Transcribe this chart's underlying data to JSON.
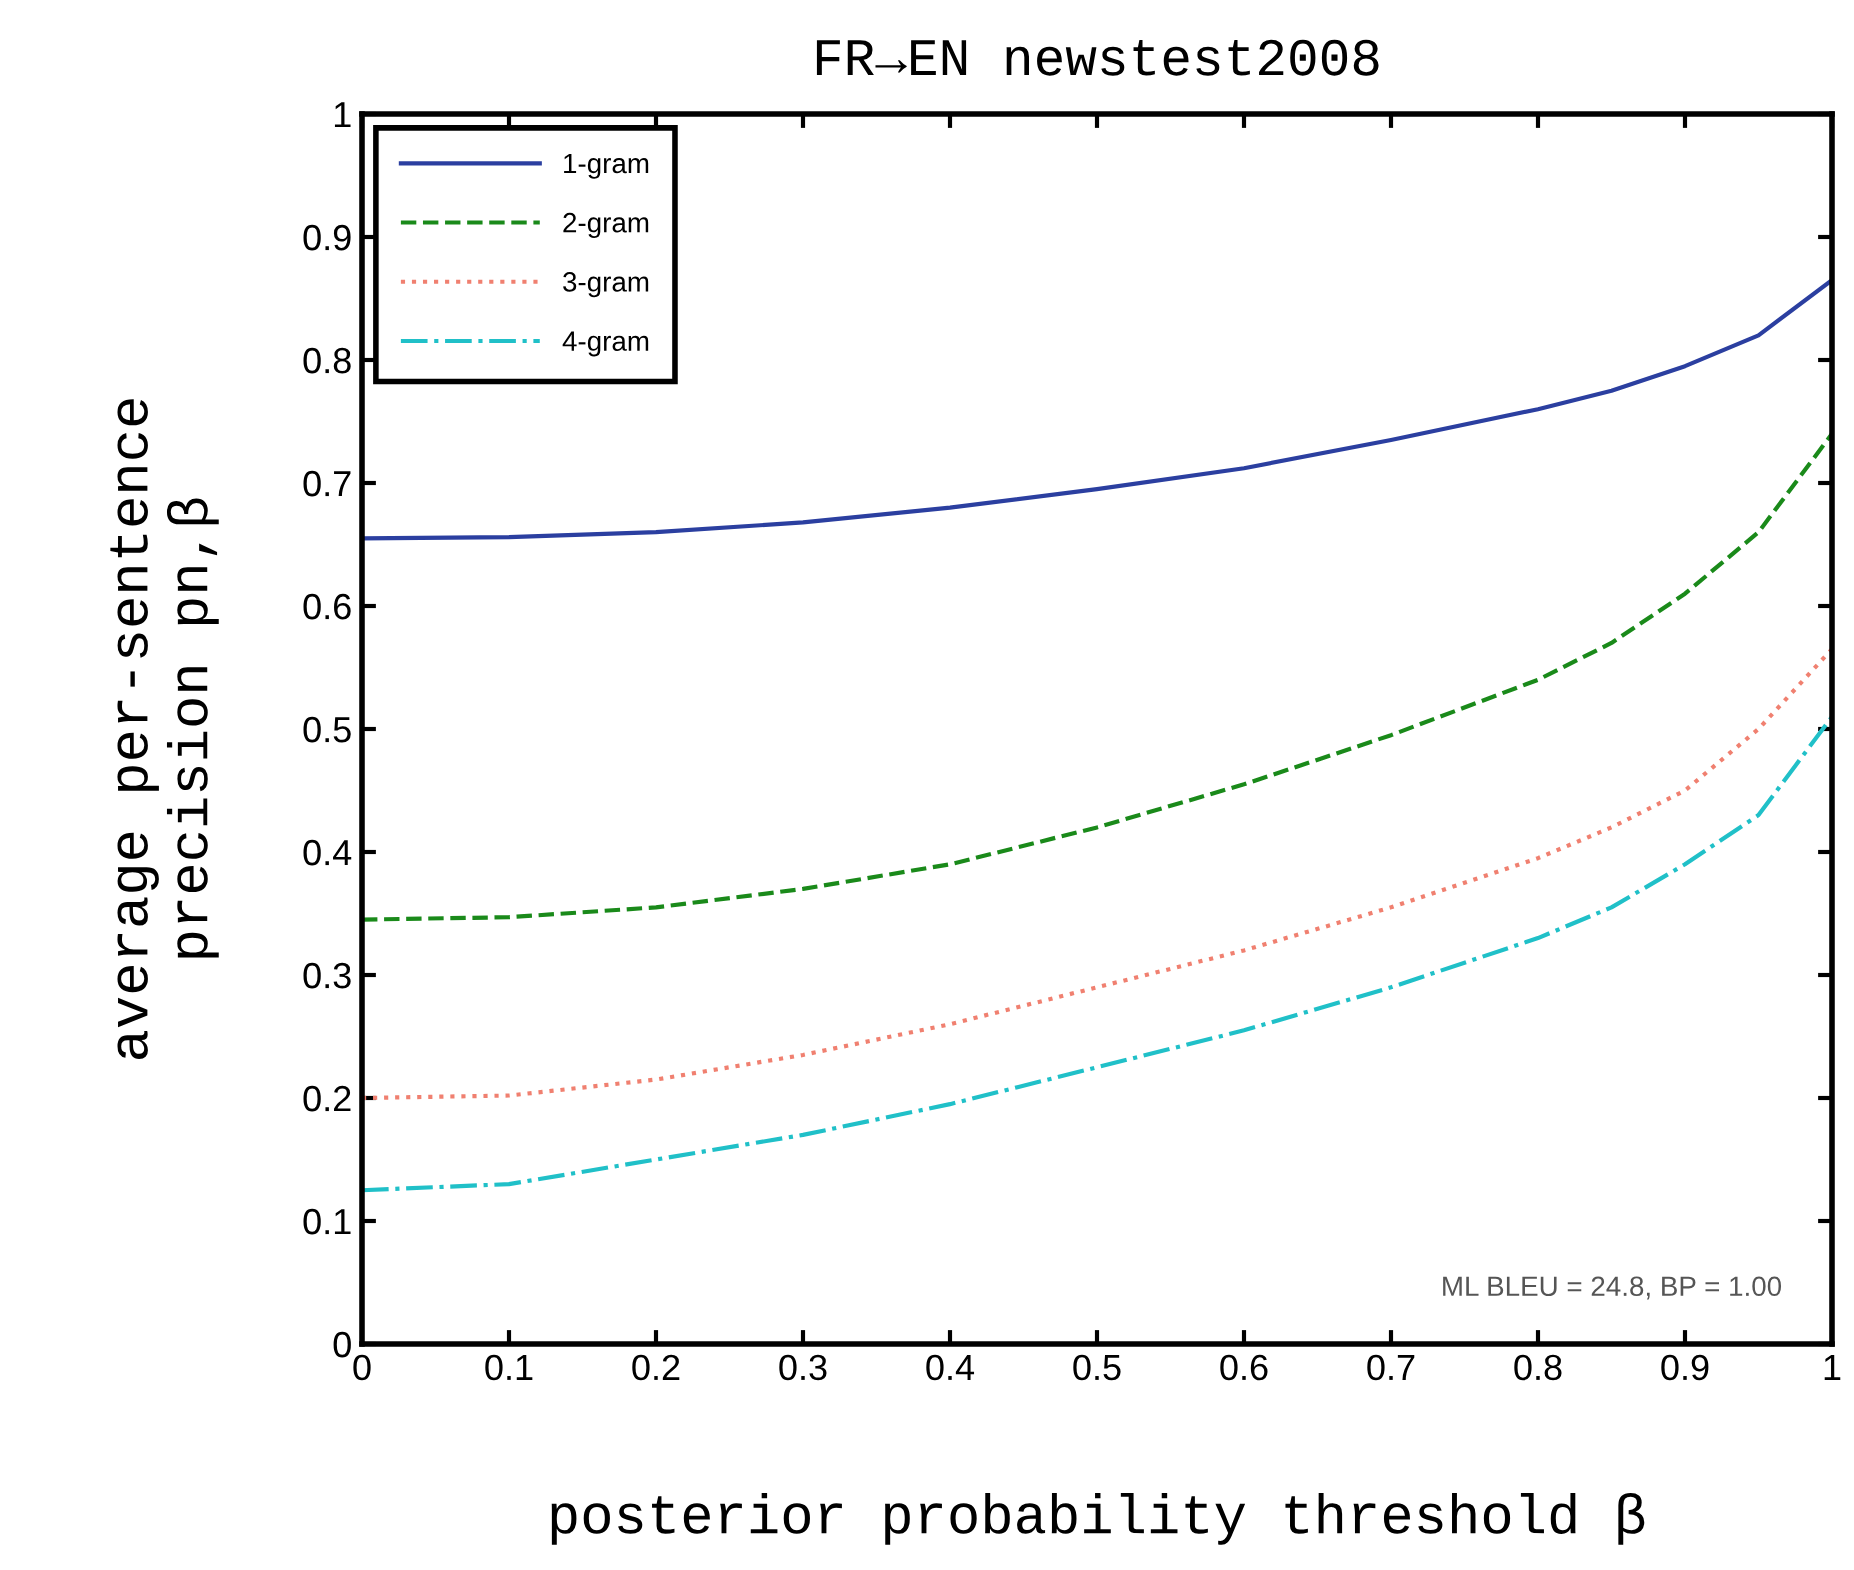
{
  "chart_data": {
    "type": "line",
    "title": "FR→EN newstest2008",
    "xlabel": "posterior probability threshold β",
    "ylabel": "average per-sentence\nprecision pn,β",
    "x": [
      0,
      0.1,
      0.2,
      0.3,
      0.4,
      0.5,
      0.6,
      0.7,
      0.8,
      0.85,
      0.9,
      0.95,
      1
    ],
    "series": [
      {
        "name": "1-gram",
        "color": "#2b3fa0",
        "line_style": "solid",
        "values": [
          0.655,
          0.656,
          0.66,
          0.668,
          0.68,
          0.695,
          0.712,
          0.735,
          0.76,
          0.775,
          0.795,
          0.82,
          0.865
        ]
      },
      {
        "name": "2-gram",
        "color": "#1a8a1a",
        "line_style": "dashed",
        "values": [
          0.345,
          0.347,
          0.355,
          0.37,
          0.39,
          0.42,
          0.455,
          0.495,
          0.54,
          0.57,
          0.61,
          0.66,
          0.74
        ]
      },
      {
        "name": "3-gram",
        "color": "#f08070",
        "line_style": "dotted",
        "values": [
          0.2,
          0.202,
          0.215,
          0.235,
          0.26,
          0.29,
          0.32,
          0.355,
          0.395,
          0.42,
          0.45,
          0.5,
          0.565
        ]
      },
      {
        "name": "4-gram",
        "color": "#20c0c8",
        "line_style": "dashdot",
        "values": [
          0.125,
          0.13,
          0.15,
          0.17,
          0.195,
          0.225,
          0.255,
          0.29,
          0.33,
          0.355,
          0.39,
          0.43,
          0.51
        ]
      }
    ],
    "xlim": [
      0,
      1
    ],
    "ylim": [
      0,
      1
    ],
    "xticks": [
      0,
      0.1,
      0.2,
      0.3,
      0.4,
      0.5,
      0.6,
      0.7,
      0.8,
      0.9,
      1
    ],
    "yticks": [
      0,
      0.1,
      0.2,
      0.3,
      0.4,
      0.5,
      0.6,
      0.7,
      0.8,
      0.9,
      1
    ],
    "annotations": [
      "ML BLEU = 24.8, BP = 1.00"
    ],
    "legend": "top left",
    "grid": false,
    "marker": "none"
  }
}
